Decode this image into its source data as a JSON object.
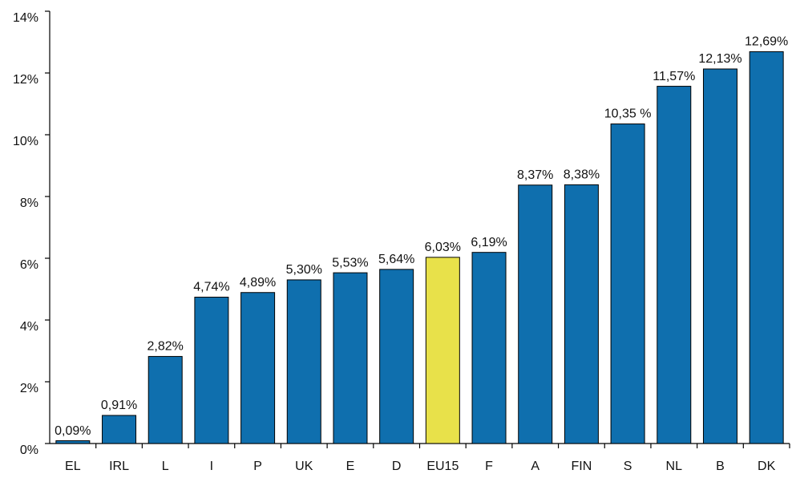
{
  "chart_data": {
    "type": "bar",
    "categories": [
      "EL",
      "IRL",
      "L",
      "I",
      "P",
      "UK",
      "E",
      "D",
      "EU15",
      "F",
      "A",
      "FIN",
      "S",
      "NL",
      "B",
      "DK"
    ],
    "values": [
      0.09,
      0.91,
      2.82,
      4.74,
      4.89,
      5.3,
      5.53,
      5.64,
      6.03,
      6.19,
      8.37,
      8.38,
      10.35,
      11.57,
      12.13,
      12.69
    ],
    "value_labels": [
      "0,09%",
      "0,91%",
      "2,82%",
      "4,74%",
      "4,89%",
      "5,30%",
      "5,53%",
      "5,64%",
      "6,03%",
      "6,19%",
      "8,37%",
      "8,38%",
      "10,35 %",
      "11,57%",
      "12,13%",
      "12,69%"
    ],
    "colors": [
      "#0f6fae",
      "#0f6fae",
      "#0f6fae",
      "#0f6fae",
      "#0f6fae",
      "#0f6fae",
      "#0f6fae",
      "#0f6fae",
      "#e8e14a",
      "#0f6fae",
      "#0f6fae",
      "#0f6fae",
      "#0f6fae",
      "#0f6fae",
      "#0f6fae",
      "#0f6fae"
    ],
    "ylim": [
      0,
      14
    ],
    "yticks": [
      {
        "value": 0,
        "label": "0%"
      },
      {
        "value": 2,
        "label": "2%"
      },
      {
        "value": 4,
        "label": "4%"
      },
      {
        "value": 6,
        "label": "6%"
      },
      {
        "value": 8,
        "label": "8%"
      },
      {
        "value": 10,
        "label": "10%"
      },
      {
        "value": 12,
        "label": "12%"
      },
      {
        "value": 14,
        "label": "14%"
      }
    ],
    "grid": false
  }
}
